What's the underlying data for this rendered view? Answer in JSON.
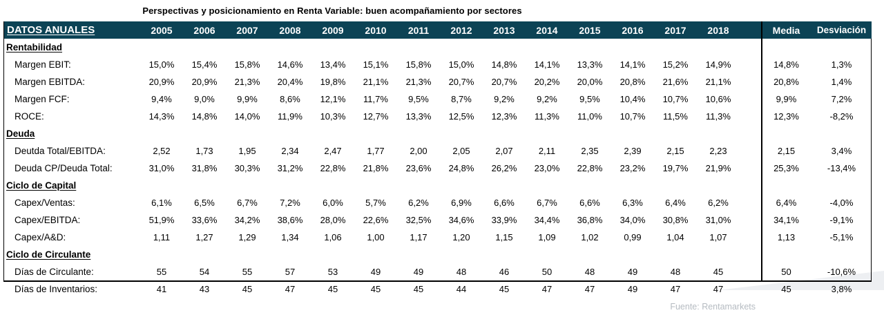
{
  "title": "Perspectivas y posicionamiento en Renta Variable: buen acompañamiento por sectores",
  "source": "Fuente: Rentamarkets",
  "colors": {
    "header_bg": "#0c4355",
    "header_text": "#ffffff",
    "divider": "#000000",
    "source_text": "#b5bbc1",
    "watermark": "#edeff2"
  },
  "table": {
    "corner_label": "DATOS ANUALES",
    "years": [
      "2005",
      "2006",
      "2007",
      "2008",
      "2009",
      "2010",
      "2011",
      "2012",
      "2013",
      "2014",
      "2015",
      "2016",
      "2017",
      "2018"
    ],
    "media_label": "Media",
    "desviacion_label": "Desviación",
    "sections": [
      {
        "name": "Rentabilidad",
        "rows": [
          {
            "label": "Margen EBIT:",
            "values": [
              "15,0%",
              "15,4%",
              "15,8%",
              "14,6%",
              "13,4%",
              "15,1%",
              "15,8%",
              "15,0%",
              "14,8%",
              "14,1%",
              "13,3%",
              "14,1%",
              "15,2%",
              "14,9%"
            ],
            "media": "14,8%",
            "desviacion": "1,3%"
          },
          {
            "label": "Margen EBITDA:",
            "values": [
              "20,9%",
              "20,9%",
              "21,3%",
              "20,4%",
              "19,8%",
              "21,1%",
              "21,3%",
              "20,7%",
              "20,7%",
              "20,2%",
              "20,0%",
              "20,8%",
              "21,6%",
              "21,1%"
            ],
            "media": "20,8%",
            "desviacion": "1,4%"
          },
          {
            "label": "Margen FCF:",
            "values": [
              "9,4%",
              "9,0%",
              "9,9%",
              "8,6%",
              "12,1%",
              "11,7%",
              "9,5%",
              "8,7%",
              "9,2%",
              "9,2%",
              "9,5%",
              "10,4%",
              "10,7%",
              "10,6%"
            ],
            "media": "9,9%",
            "desviacion": "7,2%"
          },
          {
            "label": "ROCE:",
            "values": [
              "14,3%",
              "14,8%",
              "14,0%",
              "11,9%",
              "10,3%",
              "12,7%",
              "13,3%",
              "12,5%",
              "12,3%",
              "11,3%",
              "11,0%",
              "10,7%",
              "11,5%",
              "11,3%"
            ],
            "media": "12,3%",
            "desviacion": "-8,2%"
          }
        ]
      },
      {
        "name": "Deuda",
        "rows": [
          {
            "label": "Deutda Total/EBITDA:",
            "values": [
              "2,52",
              "1,73",
              "1,95",
              "2,34",
              "2,47",
              "1,77",
              "2,00",
              "2,05",
              "2,07",
              "2,11",
              "2,35",
              "2,39",
              "2,15",
              "2,23"
            ],
            "media": "2,15",
            "desviacion": "3,4%"
          },
          {
            "label": "Deuda CP/Deuda Total:",
            "values": [
              "31,0%",
              "31,8%",
              "30,3%",
              "31,2%",
              "22,8%",
              "21,8%",
              "23,6%",
              "24,8%",
              "26,2%",
              "23,0%",
              "22,8%",
              "23,2%",
              "19,7%",
              "21,9%"
            ],
            "media": "25,3%",
            "desviacion": "-13,4%"
          }
        ]
      },
      {
        "name": "Ciclo de Capital",
        "rows": [
          {
            "label": "Capex/Ventas:",
            "values": [
              "6,1%",
              "6,5%",
              "6,7%",
              "7,2%",
              "6,0%",
              "5,7%",
              "6,2%",
              "6,9%",
              "6,6%",
              "6,7%",
              "6,6%",
              "6,3%",
              "6,4%",
              "6,2%"
            ],
            "media": "6,4%",
            "desviacion": "-4,0%"
          },
          {
            "label": "Capex/EBITDA:",
            "values": [
              "51,9%",
              "33,6%",
              "34,2%",
              "38,6%",
              "28,0%",
              "22,6%",
              "32,5%",
              "34,6%",
              "33,9%",
              "34,4%",
              "36,8%",
              "34,0%",
              "30,8%",
              "31,0%"
            ],
            "media": "34,1%",
            "desviacion": "-9,1%"
          },
          {
            "label": "Capex/A&D:",
            "values": [
              "1,11",
              "1,27",
              "1,29",
              "1,34",
              "1,06",
              "1,00",
              "1,17",
              "1,20",
              "1,15",
              "1,09",
              "1,02",
              "0,99",
              "1,04",
              "1,07"
            ],
            "media": "1,13",
            "desviacion": "-5,1%"
          }
        ]
      },
      {
        "name": "Ciclo de Circulante",
        "rows": [
          {
            "label": "Días de Circulante:",
            "values": [
              "55",
              "54",
              "55",
              "57",
              "53",
              "49",
              "49",
              "48",
              "46",
              "50",
              "48",
              "49",
              "48",
              "45"
            ],
            "media": "50",
            "desviacion": "-10,6%"
          },
          {
            "label": "Días de Inventarios:",
            "values": [
              "41",
              "43",
              "45",
              "47",
              "45",
              "45",
              "45",
              "44",
              "45",
              "47",
              "47",
              "49",
              "47",
              "47"
            ],
            "media": "45",
            "desviacion": "3,8%"
          }
        ]
      }
    ]
  }
}
